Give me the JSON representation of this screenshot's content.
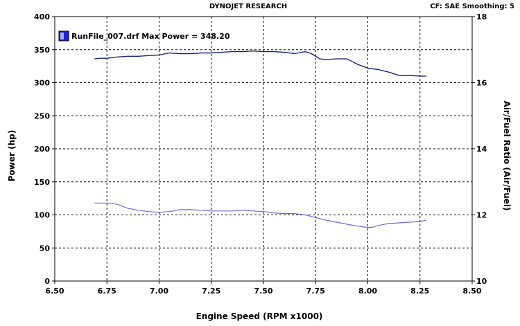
{
  "header": {
    "title": "DYNOJET RESEARCH",
    "settings": "CF: SAE  Smoothing: 5"
  },
  "colors": {
    "power_line": "#1a237e",
    "afr_line": "#6a6ae0",
    "legend_fill": "#2222dd",
    "legend_highlight": "#9fb2ff",
    "grid": "#000000"
  },
  "chart_data": {
    "type": "line",
    "xlabel": "Engine Speed (RPM x1000)",
    "ylabel_left": "Power (hp)",
    "ylabel_right": "Air/Fuel Ratio (Air/Fuel)",
    "xlim": [
      6.5,
      8.5
    ],
    "ylim_left": [
      0,
      400
    ],
    "ylim_right": [
      10,
      18
    ],
    "x_ticks": [
      "6.50",
      "6.75",
      "7.00",
      "7.25",
      "7.50",
      "7.75",
      "8.00",
      "8.25",
      "8.50"
    ],
    "y_ticks_left": [
      "0",
      "50",
      "100",
      "150",
      "200",
      "250",
      "300",
      "350",
      "400"
    ],
    "y_ticks_right": [
      "10",
      "12",
      "14",
      "16",
      "18"
    ],
    "grid": true,
    "legend": {
      "position": "top-left",
      "entry": "RunFile_007.drf Max Power = 348.20"
    },
    "series": [
      {
        "name": "RunFile_007.drf Max Power = 348.20",
        "axis": "left",
        "x": [
          6.69,
          6.72,
          6.75,
          6.8,
          6.85,
          6.9,
          6.95,
          7.0,
          7.05,
          7.1,
          7.15,
          7.2,
          7.25,
          7.3,
          7.35,
          7.4,
          7.45,
          7.5,
          7.55,
          7.6,
          7.65,
          7.7,
          7.73,
          7.77,
          7.8,
          7.85,
          7.9,
          7.95,
          8.0,
          8.05,
          8.1,
          8.15,
          8.2,
          8.25,
          8.28
        ],
        "values": [
          336,
          337,
          337,
          339,
          340,
          340,
          341,
          342,
          345,
          344,
          344,
          345,
          345,
          346,
          347,
          347,
          348,
          347,
          347,
          346,
          344,
          347,
          344,
          336,
          335,
          336,
          336,
          328,
          322,
          320,
          316,
          311,
          311,
          310,
          310
        ]
      },
      {
        "name": "",
        "axis": "right",
        "x": [
          6.69,
          6.75,
          6.8,
          6.85,
          6.9,
          6.95,
          7.0,
          7.05,
          7.1,
          7.15,
          7.2,
          7.25,
          7.3,
          7.35,
          7.4,
          7.45,
          7.5,
          7.55,
          7.6,
          7.65,
          7.7,
          7.75,
          7.8,
          7.85,
          7.9,
          7.95,
          8.0,
          8.02,
          8.05,
          8.1,
          8.15,
          8.2,
          8.25,
          8.28
        ],
        "values": [
          12.36,
          12.36,
          12.32,
          12.2,
          12.14,
          12.1,
          12.08,
          12.1,
          12.16,
          12.16,
          12.14,
          12.12,
          12.12,
          12.12,
          12.14,
          12.12,
          12.1,
          12.06,
          12.04,
          12.04,
          12.0,
          11.92,
          11.84,
          11.78,
          11.72,
          11.66,
          11.62,
          11.62,
          11.68,
          11.74,
          11.76,
          11.78,
          11.8,
          11.84
        ]
      }
    ]
  }
}
